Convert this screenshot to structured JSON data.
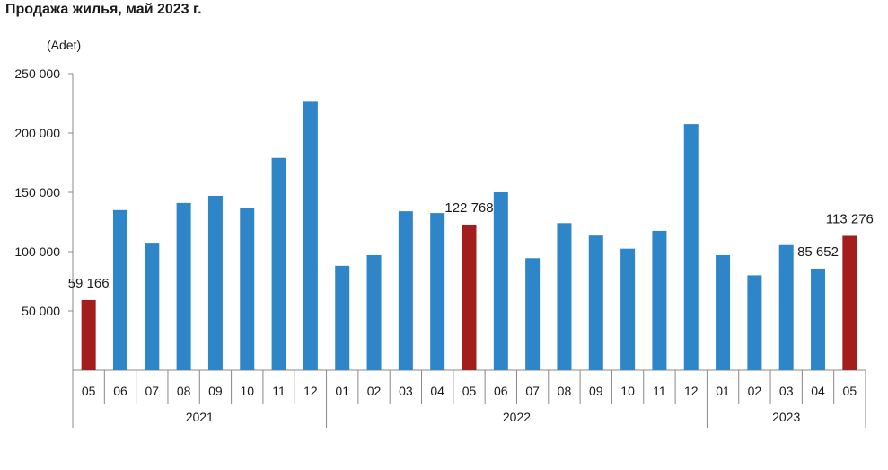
{
  "title": "Продажа жилья, май 2023 г.",
  "unit": "(Adet)",
  "colors": {
    "normal": "#2e86c8",
    "highlight": "#a31d1d",
    "axis": "#888888"
  },
  "chart_data": {
    "type": "bar",
    "ylim": [
      0,
      250000
    ],
    "yticks": [
      {
        "value": 50000,
        "label": "50 000"
      },
      {
        "value": 100000,
        "label": "100 000"
      },
      {
        "value": 150000,
        "label": "150 000"
      },
      {
        "value": 200000,
        "label": "200 000"
      },
      {
        "value": 250000,
        "label": "250 000"
      }
    ],
    "groups": [
      {
        "label": "2021",
        "count": 8
      },
      {
        "label": "2022",
        "count": 12
      },
      {
        "label": "2023",
        "count": 5
      }
    ],
    "categories": [
      "05",
      "06",
      "07",
      "08",
      "09",
      "10",
      "11",
      "12",
      "01",
      "02",
      "03",
      "04",
      "05",
      "06",
      "07",
      "08",
      "09",
      "10",
      "11",
      "12",
      "01",
      "02",
      "03",
      "04",
      "05"
    ],
    "values": [
      59166,
      135000,
      107500,
      141000,
      147000,
      137000,
      179000,
      227000,
      88000,
      97000,
      134000,
      132500,
      122768,
      150000,
      94500,
      124000,
      113500,
      102500,
      117500,
      207500,
      97000,
      80000,
      105500,
      85652,
      113276
    ],
    "highlight": [
      0,
      12,
      24
    ],
    "data_labels": [
      {
        "index": 0,
        "text": "59 166"
      },
      {
        "index": 12,
        "text": "122 768"
      },
      {
        "index": 23,
        "text": "85 652"
      },
      {
        "index": 24,
        "text": "113 276"
      }
    ],
    "grid": false,
    "legend": "none"
  }
}
